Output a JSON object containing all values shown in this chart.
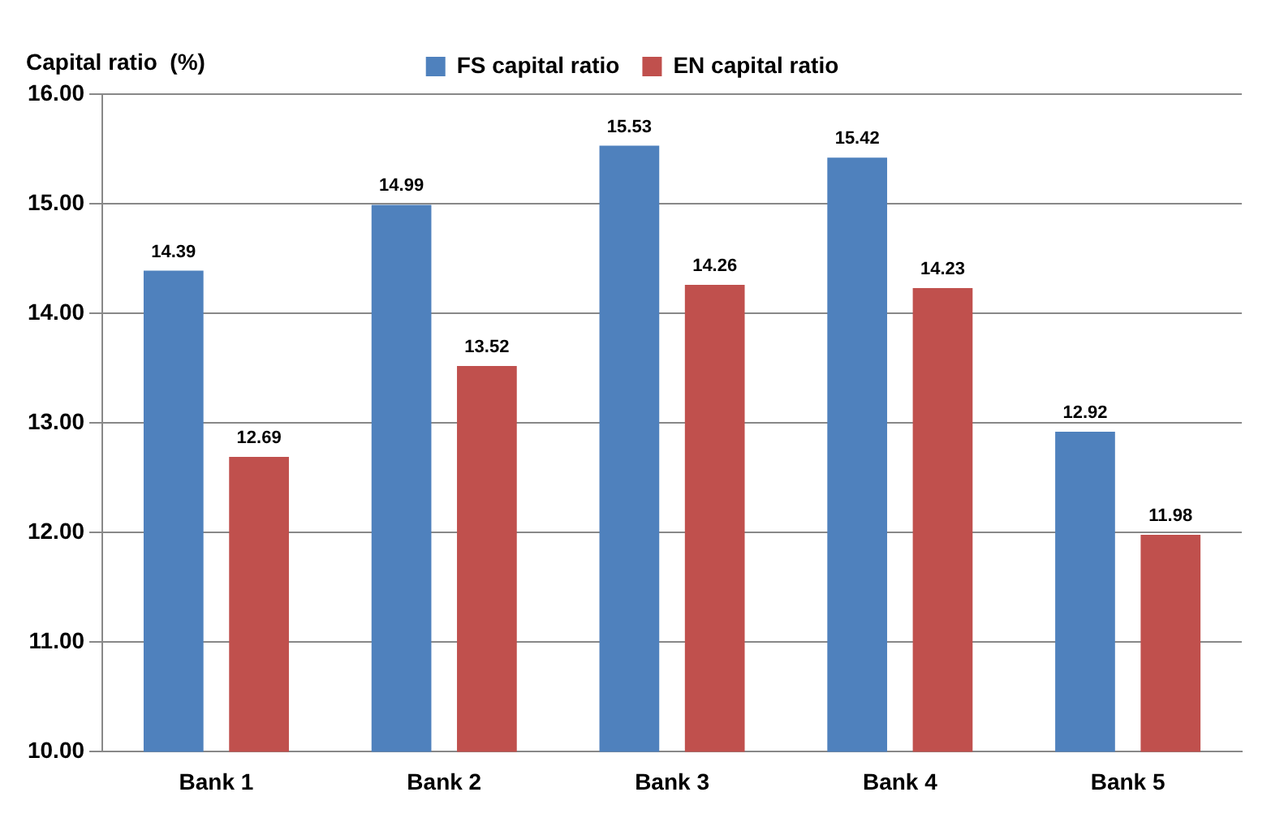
{
  "chart_data": {
    "type": "bar",
    "ylabel": "Capital ratio  (%)",
    "categories": [
      "Bank 1",
      "Bank 2",
      "Bank 3",
      "Bank 4",
      "Bank 5"
    ],
    "series": [
      {
        "name": "FS capital ratio",
        "color": "#4f81bd",
        "values": [
          14.39,
          14.99,
          15.53,
          15.42,
          12.92
        ]
      },
      {
        "name": "EN capital ratio",
        "color": "#c0504d",
        "values": [
          12.69,
          13.52,
          14.26,
          14.23,
          11.98
        ]
      }
    ],
    "ylim": [
      10,
      16
    ],
    "yticks": [
      {
        "value": 10,
        "label": "10.00"
      },
      {
        "value": 11,
        "label": "11.00"
      },
      {
        "value": 12,
        "label": "12.00"
      },
      {
        "value": 13,
        "label": "13.00"
      },
      {
        "value": 14,
        "label": "14.00"
      },
      {
        "value": 15,
        "label": "15.00"
      },
      {
        "value": 16,
        "label": "16.00"
      }
    ],
    "grid": "y",
    "legend": "top",
    "data_labels": true
  }
}
